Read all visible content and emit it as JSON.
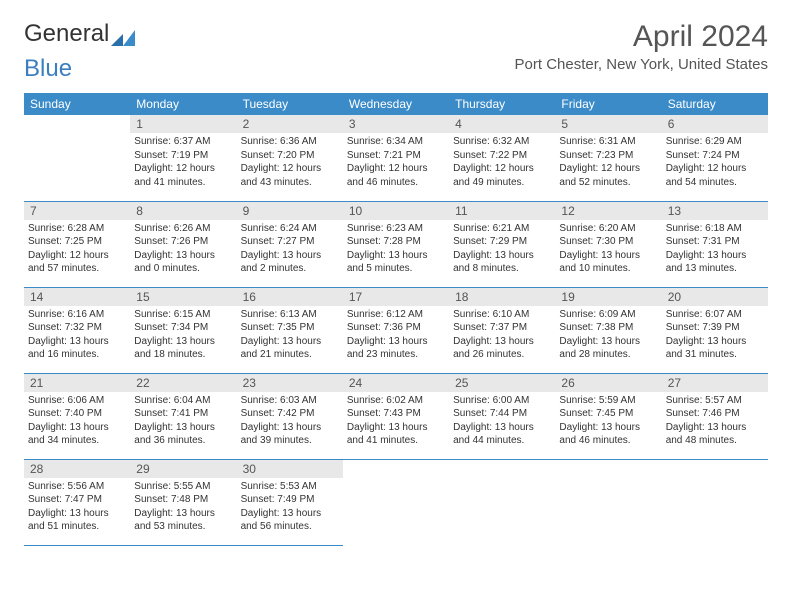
{
  "logo": {
    "part1": "General",
    "part2": "Blue"
  },
  "title": "April 2024",
  "location": "Port Chester, New York, United States",
  "colors": {
    "header_bg": "#3b8bc9",
    "header_text": "#ffffff",
    "daynum_bg": "#e8e8e8",
    "text": "#333333",
    "rule": "#3b8bc9"
  },
  "dayNames": [
    "Sunday",
    "Monday",
    "Tuesday",
    "Wednesday",
    "Thursday",
    "Friday",
    "Saturday"
  ],
  "weeks": [
    [
      null,
      {
        "n": "1",
        "sr": "Sunrise: 6:37 AM",
        "ss": "Sunset: 7:19 PM",
        "d1": "Daylight: 12 hours",
        "d2": "and 41 minutes."
      },
      {
        "n": "2",
        "sr": "Sunrise: 6:36 AM",
        "ss": "Sunset: 7:20 PM",
        "d1": "Daylight: 12 hours",
        "d2": "and 43 minutes."
      },
      {
        "n": "3",
        "sr": "Sunrise: 6:34 AM",
        "ss": "Sunset: 7:21 PM",
        "d1": "Daylight: 12 hours",
        "d2": "and 46 minutes."
      },
      {
        "n": "4",
        "sr": "Sunrise: 6:32 AM",
        "ss": "Sunset: 7:22 PM",
        "d1": "Daylight: 12 hours",
        "d2": "and 49 minutes."
      },
      {
        "n": "5",
        "sr": "Sunrise: 6:31 AM",
        "ss": "Sunset: 7:23 PM",
        "d1": "Daylight: 12 hours",
        "d2": "and 52 minutes."
      },
      {
        "n": "6",
        "sr": "Sunrise: 6:29 AM",
        "ss": "Sunset: 7:24 PM",
        "d1": "Daylight: 12 hours",
        "d2": "and 54 minutes."
      }
    ],
    [
      {
        "n": "7",
        "sr": "Sunrise: 6:28 AM",
        "ss": "Sunset: 7:25 PM",
        "d1": "Daylight: 12 hours",
        "d2": "and 57 minutes."
      },
      {
        "n": "8",
        "sr": "Sunrise: 6:26 AM",
        "ss": "Sunset: 7:26 PM",
        "d1": "Daylight: 13 hours",
        "d2": "and 0 minutes."
      },
      {
        "n": "9",
        "sr": "Sunrise: 6:24 AM",
        "ss": "Sunset: 7:27 PM",
        "d1": "Daylight: 13 hours",
        "d2": "and 2 minutes."
      },
      {
        "n": "10",
        "sr": "Sunrise: 6:23 AM",
        "ss": "Sunset: 7:28 PM",
        "d1": "Daylight: 13 hours",
        "d2": "and 5 minutes."
      },
      {
        "n": "11",
        "sr": "Sunrise: 6:21 AM",
        "ss": "Sunset: 7:29 PM",
        "d1": "Daylight: 13 hours",
        "d2": "and 8 minutes."
      },
      {
        "n": "12",
        "sr": "Sunrise: 6:20 AM",
        "ss": "Sunset: 7:30 PM",
        "d1": "Daylight: 13 hours",
        "d2": "and 10 minutes."
      },
      {
        "n": "13",
        "sr": "Sunrise: 6:18 AM",
        "ss": "Sunset: 7:31 PM",
        "d1": "Daylight: 13 hours",
        "d2": "and 13 minutes."
      }
    ],
    [
      {
        "n": "14",
        "sr": "Sunrise: 6:16 AM",
        "ss": "Sunset: 7:32 PM",
        "d1": "Daylight: 13 hours",
        "d2": "and 16 minutes."
      },
      {
        "n": "15",
        "sr": "Sunrise: 6:15 AM",
        "ss": "Sunset: 7:34 PM",
        "d1": "Daylight: 13 hours",
        "d2": "and 18 minutes."
      },
      {
        "n": "16",
        "sr": "Sunrise: 6:13 AM",
        "ss": "Sunset: 7:35 PM",
        "d1": "Daylight: 13 hours",
        "d2": "and 21 minutes."
      },
      {
        "n": "17",
        "sr": "Sunrise: 6:12 AM",
        "ss": "Sunset: 7:36 PM",
        "d1": "Daylight: 13 hours",
        "d2": "and 23 minutes."
      },
      {
        "n": "18",
        "sr": "Sunrise: 6:10 AM",
        "ss": "Sunset: 7:37 PM",
        "d1": "Daylight: 13 hours",
        "d2": "and 26 minutes."
      },
      {
        "n": "19",
        "sr": "Sunrise: 6:09 AM",
        "ss": "Sunset: 7:38 PM",
        "d1": "Daylight: 13 hours",
        "d2": "and 28 minutes."
      },
      {
        "n": "20",
        "sr": "Sunrise: 6:07 AM",
        "ss": "Sunset: 7:39 PM",
        "d1": "Daylight: 13 hours",
        "d2": "and 31 minutes."
      }
    ],
    [
      {
        "n": "21",
        "sr": "Sunrise: 6:06 AM",
        "ss": "Sunset: 7:40 PM",
        "d1": "Daylight: 13 hours",
        "d2": "and 34 minutes."
      },
      {
        "n": "22",
        "sr": "Sunrise: 6:04 AM",
        "ss": "Sunset: 7:41 PM",
        "d1": "Daylight: 13 hours",
        "d2": "and 36 minutes."
      },
      {
        "n": "23",
        "sr": "Sunrise: 6:03 AM",
        "ss": "Sunset: 7:42 PM",
        "d1": "Daylight: 13 hours",
        "d2": "and 39 minutes."
      },
      {
        "n": "24",
        "sr": "Sunrise: 6:02 AM",
        "ss": "Sunset: 7:43 PM",
        "d1": "Daylight: 13 hours",
        "d2": "and 41 minutes."
      },
      {
        "n": "25",
        "sr": "Sunrise: 6:00 AM",
        "ss": "Sunset: 7:44 PM",
        "d1": "Daylight: 13 hours",
        "d2": "and 44 minutes."
      },
      {
        "n": "26",
        "sr": "Sunrise: 5:59 AM",
        "ss": "Sunset: 7:45 PM",
        "d1": "Daylight: 13 hours",
        "d2": "and 46 minutes."
      },
      {
        "n": "27",
        "sr": "Sunrise: 5:57 AM",
        "ss": "Sunset: 7:46 PM",
        "d1": "Daylight: 13 hours",
        "d2": "and 48 minutes."
      }
    ],
    [
      {
        "n": "28",
        "sr": "Sunrise: 5:56 AM",
        "ss": "Sunset: 7:47 PM",
        "d1": "Daylight: 13 hours",
        "d2": "and 51 minutes."
      },
      {
        "n": "29",
        "sr": "Sunrise: 5:55 AM",
        "ss": "Sunset: 7:48 PM",
        "d1": "Daylight: 13 hours",
        "d2": "and 53 minutes."
      },
      {
        "n": "30",
        "sr": "Sunrise: 5:53 AM",
        "ss": "Sunset: 7:49 PM",
        "d1": "Daylight: 13 hours",
        "d2": "and 56 minutes."
      },
      null,
      null,
      null,
      null
    ]
  ]
}
